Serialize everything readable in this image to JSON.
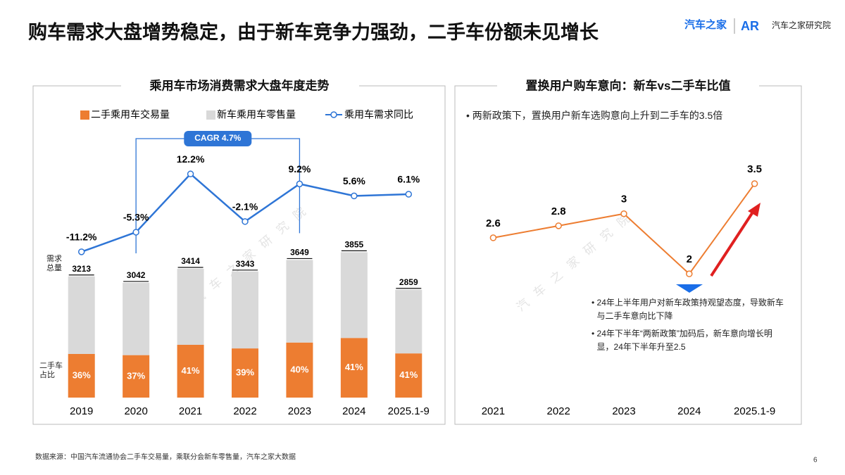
{
  "title": "购车需求大盘增势稳定，由于新车竞争力强劲，二手车份额未见增长",
  "logo": {
    "brand": "汽车之家",
    "institute": "汽车之家研究院"
  },
  "watermark": "汽车之家研究院",
  "chart_data": [
    {
      "type": "bar",
      "title": "乘用车市场消费需求大盘年度走势",
      "stacked": true,
      "legend": "top",
      "categories": [
        "2019",
        "2020",
        "2021",
        "2022",
        "2023",
        "2024",
        "2025.1-9"
      ],
      "series": [
        {
          "name": "二手乘用车交易量",
          "color": "#ed7d31",
          "values": [
            1157,
            1126,
            1400,
            1304,
            1460,
            1581,
            1172
          ]
        },
        {
          "name": "新车乘用车零售量",
          "color": "#d9d9d9",
          "values": [
            2056,
            1916,
            2014,
            2039,
            2189,
            2274,
            1687
          ]
        },
        {
          "name": "乘用车需求同比",
          "type": "line",
          "axis": "y2",
          "color": "#2e75d6",
          "values": [
            -11.2,
            -5.3,
            12.2,
            -2.1,
            9.2,
            5.6,
            6.1
          ],
          "value_labels": [
            "-11.2%",
            "-5.3%",
            "12.2%",
            "-2.1%",
            "9.2%",
            "5.6%",
            "6.1%"
          ]
        }
      ],
      "totals": [
        3213,
        3042,
        3414,
        3343,
        3649,
        3855,
        2859
      ],
      "total_label": "需求总量",
      "share_labels": [
        "36%",
        "37%",
        "41%",
        "39%",
        "40%",
        "41%",
        "41%"
      ],
      "share_label": "二手车占比",
      "annotation": "CAGR 4.7%",
      "ylim": [
        0,
        7500
      ],
      "y2lim": [
        -55,
        30
      ]
    },
    {
      "type": "line",
      "title": "置换用户购车意向：新车vs二手车比值",
      "categories": [
        "2021",
        "2022",
        "2023",
        "2024",
        "2025.1-9"
      ],
      "values": [
        2.6,
        2.8,
        3.0,
        2.0,
        3.5
      ],
      "color": "#ed7d31",
      "ylim": [
        0,
        4.8
      ],
      "note": "两新政策下，置换用户新车选购意向上升到二手车的3.5倍",
      "annotations": [
        "24年上半年用户对新车政策持观望态度，导致新车与二手车意向比下降",
        "24年下半年“两新政策”加码后，新车意向增长明显，24年下半年升至2.5"
      ]
    }
  ],
  "source": "数据来源：中国汽车流通协会二手车交易量，乘联分会新车零售量，汽车之家大数据",
  "page": 6
}
